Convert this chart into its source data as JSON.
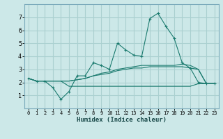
{
  "xlabel": "Humidex (Indice chaleur)",
  "x": [
    0,
    1,
    2,
    3,
    4,
    5,
    6,
    7,
    8,
    9,
    10,
    11,
    12,
    13,
    14,
    15,
    16,
    17,
    18,
    19,
    20,
    21,
    22,
    23
  ],
  "line1": [
    2.3,
    2.1,
    2.1,
    1.6,
    0.7,
    1.3,
    2.5,
    2.5,
    3.5,
    3.3,
    3.0,
    5.0,
    4.5,
    4.1,
    4.0,
    6.9,
    7.3,
    6.3,
    5.4,
    3.5,
    3.1,
    2.0,
    1.9,
    1.9
  ],
  "line2": [
    2.3,
    2.1,
    2.1,
    2.1,
    2.1,
    2.1,
    2.2,
    2.3,
    2.5,
    2.6,
    2.7,
    2.9,
    3.0,
    3.1,
    3.1,
    3.2,
    3.2,
    3.2,
    3.2,
    3.2,
    3.1,
    3.0,
    1.9,
    1.9
  ],
  "line3": [
    2.3,
    2.1,
    2.1,
    2.1,
    2.1,
    2.1,
    2.2,
    2.3,
    2.5,
    2.7,
    2.8,
    3.0,
    3.1,
    3.2,
    3.3,
    3.3,
    3.3,
    3.3,
    3.3,
    3.4,
    3.3,
    3.0,
    1.9,
    1.9
  ],
  "line4": [
    2.3,
    2.1,
    2.1,
    2.1,
    2.1,
    1.7,
    1.7,
    1.7,
    1.7,
    1.7,
    1.7,
    1.7,
    1.7,
    1.7,
    1.7,
    1.7,
    1.7,
    1.7,
    1.7,
    1.7,
    1.7,
    1.9,
    1.9,
    1.9
  ],
  "color": "#1a7a6e",
  "bg_color": "#cce8e8",
  "grid_color": "#aad0d0",
  "ylim": [
    0,
    8
  ],
  "xlim": [
    -0.5,
    23.5
  ],
  "yticks": [
    1,
    2,
    3,
    4,
    5,
    6,
    7
  ],
  "xticks": [
    0,
    1,
    2,
    3,
    4,
    5,
    6,
    7,
    8,
    9,
    10,
    11,
    12,
    13,
    14,
    15,
    16,
    17,
    18,
    19,
    20,
    21,
    22,
    23
  ]
}
